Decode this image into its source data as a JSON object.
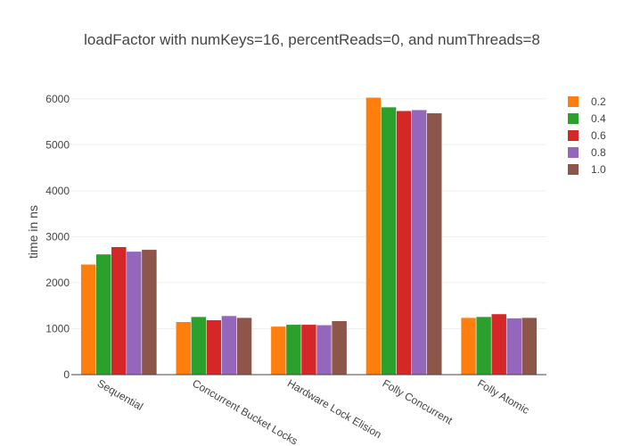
{
  "chart_data": {
    "type": "bar",
    "title": "loadFactor with numKeys=16, percentReads=0, and numThreads=8",
    "xlabel": "",
    "ylabel": "time in ns",
    "ylim": [
      0,
      6500
    ],
    "yticks": [
      0,
      1000,
      2000,
      3000,
      4000,
      5000,
      6000
    ],
    "grid": true,
    "legend_position": "top-right",
    "categories": [
      "Sequential",
      "Concurrent Bucket Locks",
      "Hardware Lock Elision",
      "Folly Concurrent",
      "Folly Atomic"
    ],
    "series": [
      {
        "name": "0.2",
        "color": "#ff7f0e",
        "values": [
          2400,
          1150,
          1050,
          6030,
          1240
        ]
      },
      {
        "name": "0.4",
        "color": "#2ca02c",
        "values": [
          2620,
          1260,
          1090,
          5820,
          1260
        ]
      },
      {
        "name": "0.6",
        "color": "#d62728",
        "values": [
          2780,
          1190,
          1090,
          5740,
          1320
        ]
      },
      {
        "name": "0.8",
        "color": "#9467bd",
        "values": [
          2680,
          1280,
          1080,
          5760,
          1230
        ]
      },
      {
        "name": "1.0",
        "color": "#8c564b",
        "values": [
          2720,
          1240,
          1170,
          5690,
          1240
        ]
      }
    ]
  }
}
